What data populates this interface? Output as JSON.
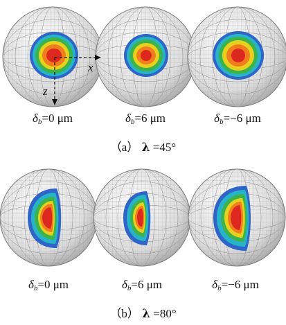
{
  "panels": [
    {
      "id": "a",
      "caption_letter": "（a）",
      "caption_symbol": "λ",
      "caption_value": "=45°",
      "axes": {
        "x": "x",
        "z": "z"
      },
      "spheres": [
        {
          "prefix": "δ",
          "sub": "b",
          "value": "=0 μm"
        },
        {
          "prefix": "δ",
          "sub": "b",
          "value": "=6 μm"
        },
        {
          "prefix": "δ",
          "sub": "b",
          "value": "=−6 μm"
        }
      ]
    },
    {
      "id": "b",
      "caption_letter": "（b）",
      "caption_symbol": "λ",
      "caption_value": "=80°",
      "spheres": [
        {
          "prefix": "δ",
          "sub": "b",
          "value": "=0 μm"
        },
        {
          "prefix": "δ",
          "sub": "b",
          "value": "=6 μm"
        },
        {
          "prefix": "δ",
          "sub": "b",
          "value": "=−6 μm"
        }
      ]
    }
  ],
  "colors": {
    "sphere_fill": "#e6e6e6",
    "mesh": "#9a9a9a",
    "contour_outer": "#2f64c8",
    "contour_cyan": "#27b4c8",
    "contour_green": "#3cb44b",
    "contour_yellow": "#e6d21e",
    "contour_orange": "#f07d1e",
    "contour_red": "#dc281e"
  }
}
